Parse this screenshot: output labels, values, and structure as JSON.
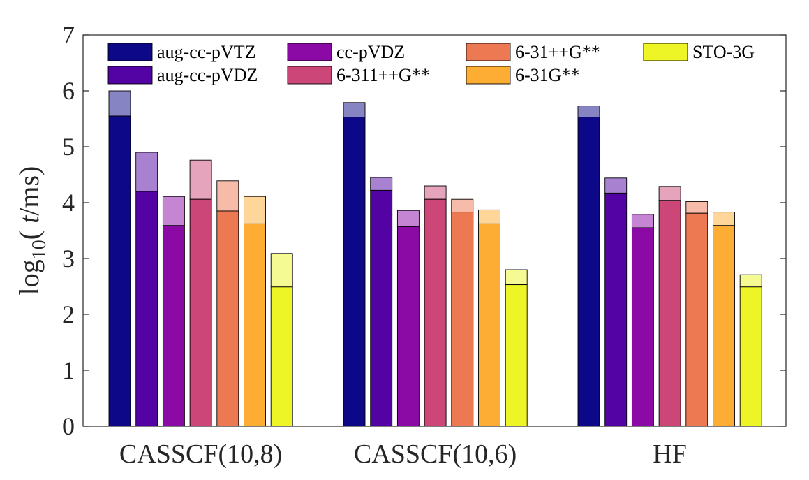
{
  "chart_data": {
    "type": "bar",
    "stacked_overlay": true,
    "categories": [
      "CASSCF(10,8)",
      "CASSCF(10,6)",
      "HF"
    ],
    "ylabel": {
      "prefix": "log",
      "subscript": "10",
      "open": "( ",
      "italic": "t",
      "rest": "/ms)"
    },
    "ylim": [
      0,
      7
    ],
    "yticks": [
      "0",
      "1",
      "2",
      "3",
      "4",
      "5",
      "6",
      "7"
    ],
    "grid": false,
    "legend_position": "top",
    "series": [
      {
        "name": "aug-cc-pVTZ",
        "color": "#0d0887",
        "light": "#8784c3",
        "values": [
          5.55,
          5.53,
          5.53
        ],
        "totals": [
          6.0,
          5.79,
          5.73
        ]
      },
      {
        "name": "aug-cc-pVDZ",
        "color": "#5302a3",
        "light": "#a981d1",
        "values": [
          4.2,
          4.22,
          4.17
        ],
        "totals": [
          4.9,
          4.45,
          4.44
        ]
      },
      {
        "name": "cc-pVDZ",
        "color": "#8b0aa5",
        "light": "#c585d2",
        "values": [
          3.59,
          3.57,
          3.55
        ],
        "totals": [
          4.11,
          3.86,
          3.79
        ]
      },
      {
        "name": "6-311++G**",
        "color": "#cc4778",
        "light": "#e6a3bc",
        "values": [
          4.06,
          4.06,
          4.04
        ],
        "totals": [
          4.76,
          4.3,
          4.29
        ]
      },
      {
        "name": "6-31++G**",
        "color": "#ed7953",
        "light": "#f6bca9",
        "values": [
          3.85,
          3.83,
          3.81
        ],
        "totals": [
          4.39,
          4.06,
          4.02
        ]
      },
      {
        "name": "6-31G**",
        "color": "#fdac34",
        "light": "#fed69a",
        "values": [
          3.62,
          3.62,
          3.59
        ],
        "totals": [
          4.11,
          3.87,
          3.83
        ]
      },
      {
        "name": "STO-3G",
        "color": "#eef527",
        "light": "#f6fa93",
        "values": [
          2.49,
          2.53,
          2.49
        ],
        "totals": [
          3.09,
          2.8,
          2.71
        ]
      }
    ]
  }
}
